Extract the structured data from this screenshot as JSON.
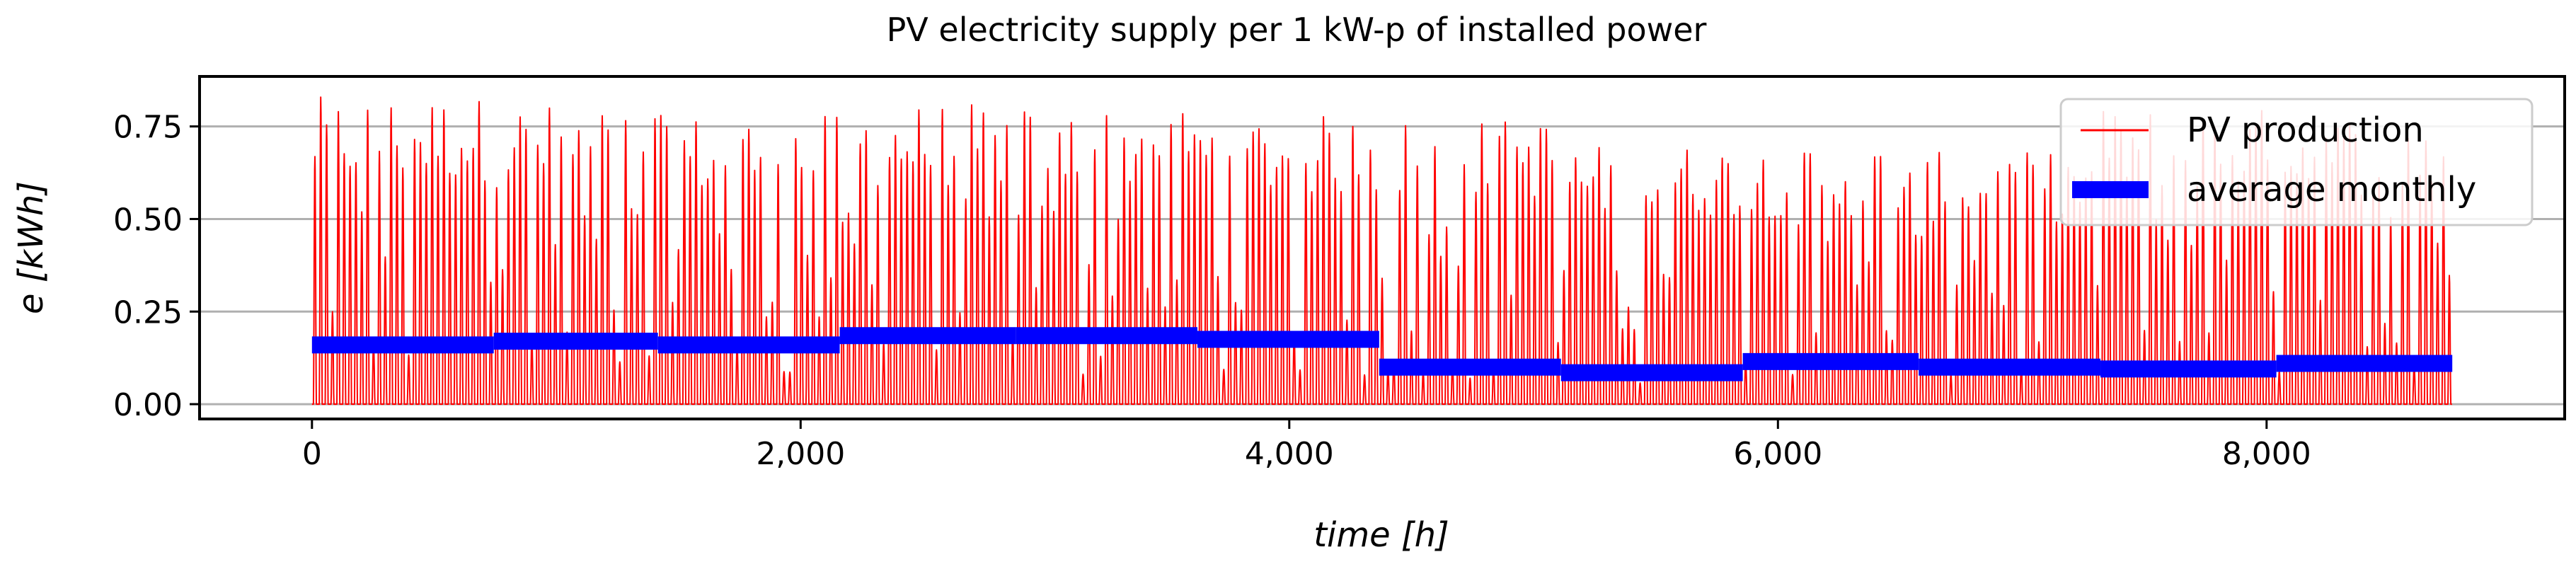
{
  "chart_data": {
    "type": "line",
    "title": "PV electricity supply per 1 kW-p of installed power",
    "xlabel": "time [h]",
    "ylabel": "e [kWh]",
    "xlim": [
      -460,
      9220
    ],
    "ylim": [
      -0.04,
      0.885
    ],
    "x_ticks": [
      0,
      2000,
      4000,
      6000,
      8000
    ],
    "x_tick_labels": [
      "0",
      "2,000",
      "4,000",
      "6,000",
      "8,000"
    ],
    "y_ticks": [
      0.0,
      0.25,
      0.5,
      0.75
    ],
    "y_tick_labels": [
      "0.00",
      "0.25",
      "0.50",
      "0.75"
    ],
    "grid": "horizontal",
    "legend_position": "top-right",
    "colors": {
      "pv": "#ff0000",
      "avg": "#0000ff",
      "grid": "#b0b0b0",
      "axis": "#000000"
    },
    "series": [
      {
        "name": "PV production",
        "kind": "hourly",
        "hours_total": 8760,
        "monthly_peak_kwh": [
          0.83,
          0.81,
          0.78,
          0.81,
          0.8,
          0.78,
          0.77,
          0.7,
          0.7,
          0.68,
          0.8,
          0.78
        ]
      },
      {
        "name": "average monthly",
        "kind": "steps",
        "months": [
          {
            "x_start": 0,
            "x_end": 744,
            "value": 0.16
          },
          {
            "x_start": 744,
            "x_end": 1416,
            "value": 0.17
          },
          {
            "x_start": 1416,
            "x_end": 2160,
            "value": 0.16
          },
          {
            "x_start": 2160,
            "x_end": 2880,
            "value": 0.185
          },
          {
            "x_start": 2880,
            "x_end": 3624,
            "value": 0.185
          },
          {
            "x_start": 3624,
            "x_end": 4368,
            "value": 0.175
          },
          {
            "x_start": 4368,
            "x_end": 5112,
            "value": 0.1
          },
          {
            "x_start": 5112,
            "x_end": 5856,
            "value": 0.085
          },
          {
            "x_start": 5856,
            "x_end": 6576,
            "value": 0.115
          },
          {
            "x_start": 6576,
            "x_end": 7320,
            "value": 0.1
          },
          {
            "x_start": 7320,
            "x_end": 8040,
            "value": 0.095
          },
          {
            "x_start": 8040,
            "x_end": 8760,
            "value": 0.11
          }
        ]
      }
    ]
  }
}
